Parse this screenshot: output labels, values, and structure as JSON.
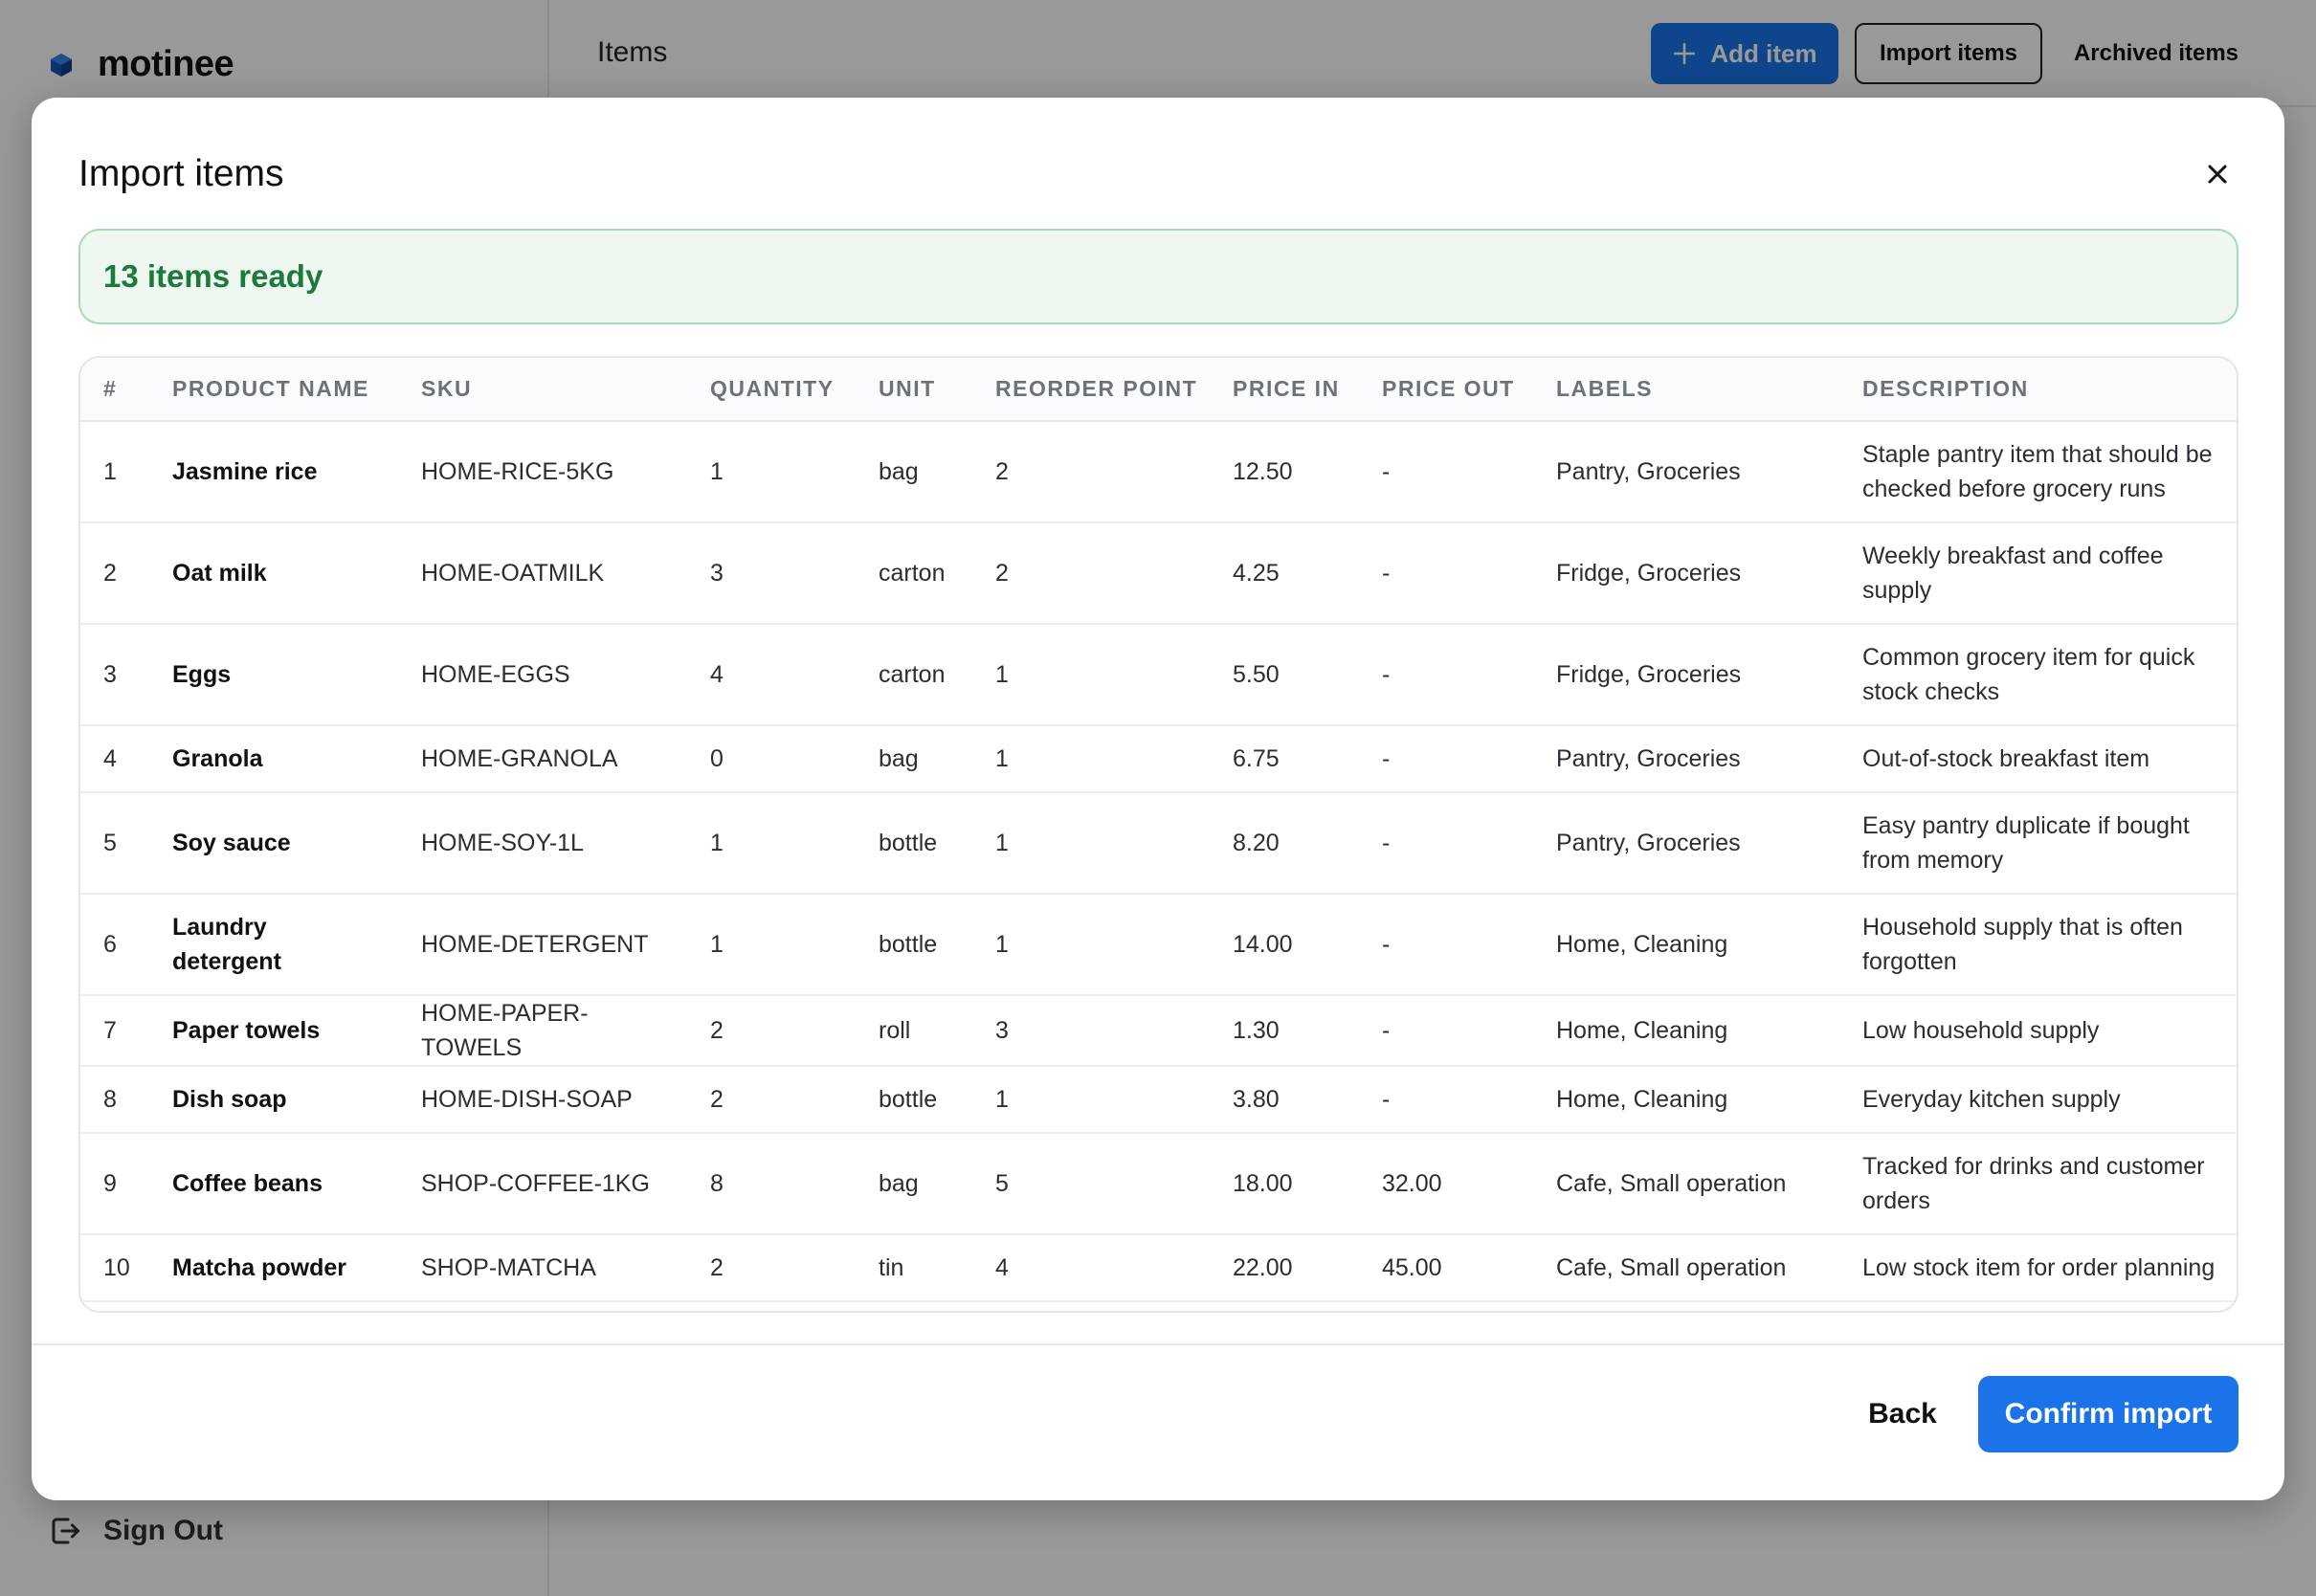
{
  "app": {
    "brand": "motinee",
    "page_title": "Items",
    "sign_out": "Sign Out",
    "toolbar": {
      "add_item": "Add item",
      "import_items": "Import items",
      "archived_items": "Archived items"
    }
  },
  "modal": {
    "title": "Import items",
    "close_icon": "close-icon",
    "status": "13 items ready",
    "columns": [
      "#",
      "PRODUCT NAME",
      "SKU",
      "QUANTITY",
      "UNIT",
      "REORDER POINT",
      "PRICE IN",
      "PRICE OUT",
      "LABELS",
      "DESCRIPTION"
    ],
    "rows": [
      {
        "n": "1",
        "name": "Jasmine rice",
        "sku": "HOME-RICE-5KG",
        "qty": "1",
        "unit": "bag",
        "reorder": "2",
        "price_in": "12.50",
        "price_out": "-",
        "labels": "Pantry, Groceries",
        "desc": "Staple pantry item that should be checked before grocery runs"
      },
      {
        "n": "2",
        "name": "Oat milk",
        "sku": "HOME-OATMILK",
        "qty": "3",
        "unit": "carton",
        "reorder": "2",
        "price_in": "4.25",
        "price_out": "-",
        "labels": "Fridge, Groceries",
        "desc": "Weekly breakfast and coffee supply"
      },
      {
        "n": "3",
        "name": "Eggs",
        "sku": "HOME-EGGS",
        "qty": "4",
        "unit": "carton",
        "reorder": "1",
        "price_in": "5.50",
        "price_out": "-",
        "labels": "Fridge, Groceries",
        "desc": "Common grocery item for quick stock checks"
      },
      {
        "n": "4",
        "name": "Granola",
        "sku": "HOME-GRANOLA",
        "qty": "0",
        "unit": "bag",
        "reorder": "1",
        "price_in": "6.75",
        "price_out": "-",
        "labels": "Pantry, Groceries",
        "desc": "Out-of-stock breakfast item"
      },
      {
        "n": "5",
        "name": "Soy sauce",
        "sku": "HOME-SOY-1L",
        "qty": "1",
        "unit": "bottle",
        "reorder": "1",
        "price_in": "8.20",
        "price_out": "-",
        "labels": "Pantry, Groceries",
        "desc": "Easy pantry duplicate if bought from memory"
      },
      {
        "n": "6",
        "name": "Laundry detergent",
        "sku": "HOME-DETERGENT",
        "qty": "1",
        "unit": "bottle",
        "reorder": "1",
        "price_in": "14.00",
        "price_out": "-",
        "labels": "Home, Cleaning",
        "desc": "Household supply that is often forgotten"
      },
      {
        "n": "7",
        "name": "Paper towels",
        "sku": "HOME-PAPER-TOWELS",
        "qty": "2",
        "unit": "roll",
        "reorder": "3",
        "price_in": "1.30",
        "price_out": "-",
        "labels": "Home, Cleaning",
        "desc": "Low household supply"
      },
      {
        "n": "8",
        "name": "Dish soap",
        "sku": "HOME-DISH-SOAP",
        "qty": "2",
        "unit": "bottle",
        "reorder": "1",
        "price_in": "3.80",
        "price_out": "-",
        "labels": "Home, Cleaning",
        "desc": "Everyday kitchen supply"
      },
      {
        "n": "9",
        "name": "Coffee beans",
        "sku": "SHOP-COFFEE-1KG",
        "qty": "8",
        "unit": "bag",
        "reorder": "5",
        "price_in": "18.00",
        "price_out": "32.00",
        "labels": "Cafe, Small operation",
        "desc": "Tracked for drinks and customer orders"
      },
      {
        "n": "10",
        "name": "Matcha powder",
        "sku": "SHOP-MATCHA",
        "qty": "2",
        "unit": "tin",
        "reorder": "4",
        "price_in": "22.00",
        "price_out": "45.00",
        "labels": "Cafe, Small operation",
        "desc": "Low stock item for order planning"
      }
    ],
    "footer": {
      "back": "Back",
      "confirm": "Confirm import"
    }
  },
  "colors": {
    "primary": "#1a73e8",
    "success_text": "#1b7a3c",
    "success_bg": "#eef8f1",
    "success_border": "#a8d8b6"
  }
}
